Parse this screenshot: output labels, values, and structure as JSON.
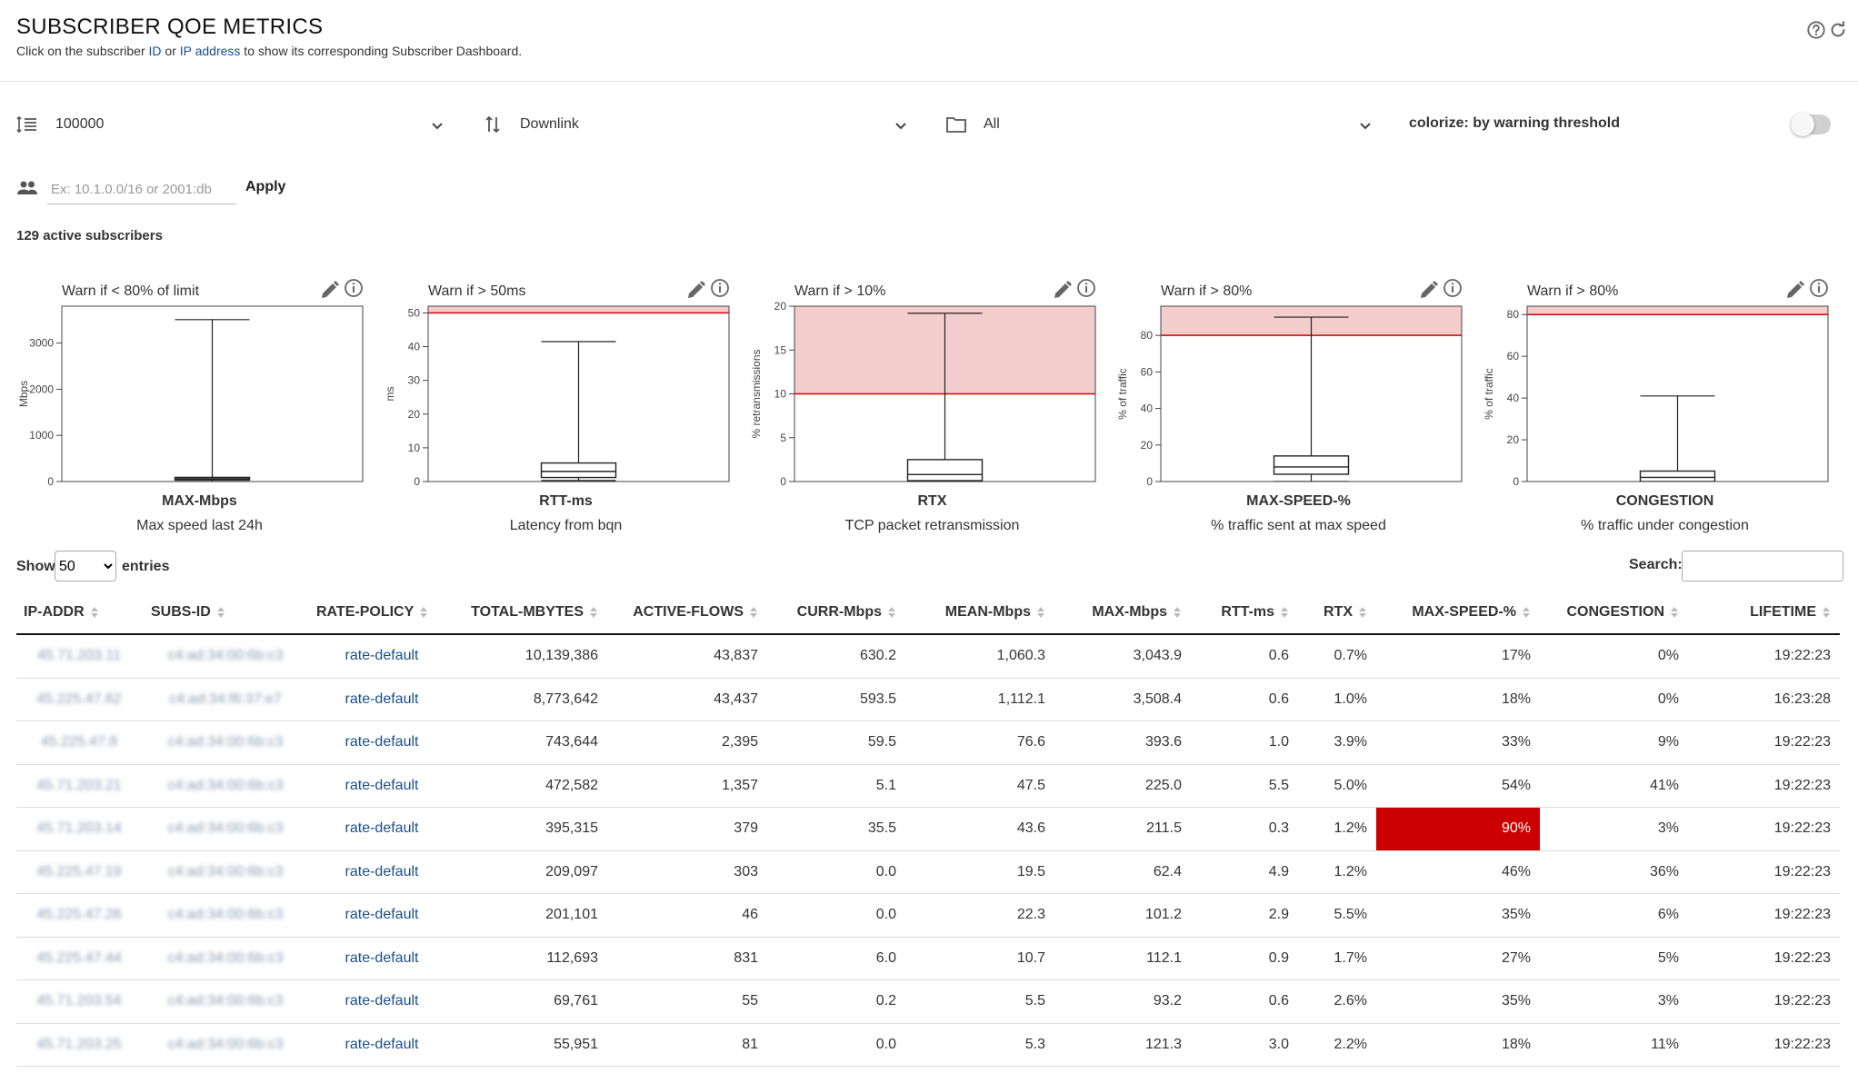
{
  "header": {
    "title": "SUBSCRIBER QOE METRICS",
    "subtitle_prefix": "Click on the subscriber ",
    "subtitle_link1": "ID",
    "subtitle_mid": " or ",
    "subtitle_link2": "IP address",
    "subtitle_suffix": " to show its corresponding Subscriber Dashboard."
  },
  "controls": {
    "limit": "100000",
    "direction": "Downlink",
    "folder": "All",
    "colorize_label": "colorize: by warning threshold",
    "colorize_on": false,
    "ip_filter_placeholder": "Ex: 10.1.0.0/16 or 2001:db",
    "apply_label": "Apply"
  },
  "summary": {
    "active_subscribers": "129 active subscribers"
  },
  "chart_data": [
    {
      "type": "box",
      "warn_text": "Warn if < 80% of limit",
      "name": "MAX-Mbps",
      "description": "Max speed last 24h",
      "ylabel": "Mbps",
      "ylim": [
        0,
        3800
      ],
      "yticks": [
        0,
        1000,
        2000,
        3000
      ],
      "threshold": null,
      "box": {
        "min": 0,
        "q1": 35,
        "median": 60,
        "q3": 90,
        "max": 3508
      }
    },
    {
      "type": "box",
      "warn_text": "Warn if > 50ms",
      "name": "RTT-ms",
      "description": "Latency from bqn",
      "ylabel": "ms",
      "ylim": [
        0,
        52
      ],
      "yticks": [
        0,
        10,
        20,
        30,
        40,
        50
      ],
      "threshold": 50,
      "box": {
        "min": 0.3,
        "q1": 1.2,
        "median": 3.0,
        "q3": 5.5,
        "max": 41.5
      }
    },
    {
      "type": "box",
      "warn_text": "Warn if > 10%",
      "name": "RTX",
      "description": "TCP packet retransmission",
      "ylabel": "% retransmissions",
      "ylim": [
        0,
        20
      ],
      "yticks": [
        0,
        5,
        10,
        15,
        20
      ],
      "threshold": 10,
      "box": {
        "min": 0,
        "q1": 0.1,
        "median": 0.8,
        "q3": 2.5,
        "max": 19.2
      }
    },
    {
      "type": "box",
      "warn_text": "Warn if > 80%",
      "name": "MAX-SPEED-%",
      "description": "% traffic sent at max speed",
      "ylabel": "% of traffic",
      "ylim": [
        0,
        96
      ],
      "yticks": [
        0,
        20,
        40,
        60,
        80
      ],
      "threshold": 80,
      "box": {
        "min": 0,
        "q1": 4,
        "median": 8,
        "q3": 14,
        "max": 90
      }
    },
    {
      "type": "box",
      "warn_text": "Warn if > 80%",
      "name": "CONGESTION",
      "description": "% traffic under congestion",
      "ylabel": "% of traffic",
      "ylim": [
        0,
        84
      ],
      "yticks": [
        0,
        20,
        40,
        60,
        80
      ],
      "threshold": 80,
      "box": {
        "min": 0,
        "q1": 0,
        "median": 2,
        "q3": 5,
        "max": 41
      }
    }
  ],
  "table": {
    "show_label": "Show",
    "entries_value": "50",
    "entries_label": "entries",
    "search_label": "Search:",
    "columns": [
      "IP-ADDR",
      "SUBS-ID",
      "RATE-POLICY",
      "TOTAL-MBYTES",
      "ACTIVE-FLOWS",
      "CURR-Mbps",
      "MEAN-Mbps",
      "MAX-Mbps",
      "RTT-ms",
      "RTX",
      "MAX-SPEED-%",
      "CONGESTION",
      "LIFETIME"
    ],
    "rows": [
      {
        "ip": "45.71.203.11",
        "subs": "c4:ad:34:00:6b:c3",
        "policy": "rate-default",
        "total": "10,139,386",
        "flows": "43,837",
        "curr": "630.2",
        "mean": "1,060.3",
        "max": "3,043.9",
        "rtt": "0.6",
        "rtx": "0.7%",
        "maxspeed": "17%",
        "warn": false,
        "cong": "0%",
        "life": "19:22:23"
      },
      {
        "ip": "45.225.47.62",
        "subs": "c4:ad:34:f6:37:e7",
        "policy": "rate-default",
        "total": "8,773,642",
        "flows": "43,437",
        "curr": "593.5",
        "mean": "1,112.1",
        "max": "3,508.4",
        "rtt": "0.6",
        "rtx": "1.0%",
        "maxspeed": "18%",
        "warn": false,
        "cong": "0%",
        "life": "16:23:28"
      },
      {
        "ip": "45.225.47.8",
        "subs": "c4:ad:34:00:6b:c3",
        "policy": "rate-default",
        "total": "743,644",
        "flows": "2,395",
        "curr": "59.5",
        "mean": "76.6",
        "max": "393.6",
        "rtt": "1.0",
        "rtx": "3.9%",
        "maxspeed": "33%",
        "warn": false,
        "cong": "9%",
        "life": "19:22:23"
      },
      {
        "ip": "45.71.203.21",
        "subs": "c4:ad:34:00:6b:c3",
        "policy": "rate-default",
        "total": "472,582",
        "flows": "1,357",
        "curr": "5.1",
        "mean": "47.5",
        "max": "225.0",
        "rtt": "5.5",
        "rtx": "5.0%",
        "maxspeed": "54%",
        "warn": false,
        "cong": "41%",
        "life": "19:22:23"
      },
      {
        "ip": "45.71.203.14",
        "subs": "c4:ad:34:00:6b:c3",
        "policy": "rate-default",
        "total": "395,315",
        "flows": "379",
        "curr": "35.5",
        "mean": "43.6",
        "max": "211.5",
        "rtt": "0.3",
        "rtx": "1.2%",
        "maxspeed": "90%",
        "warn": true,
        "cong": "3%",
        "life": "19:22:23"
      },
      {
        "ip": "45.225.47.19",
        "subs": "c4:ad:34:00:6b:c3",
        "policy": "rate-default",
        "total": "209,097",
        "flows": "303",
        "curr": "0.0",
        "mean": "19.5",
        "max": "62.4",
        "rtt": "4.9",
        "rtx": "1.2%",
        "maxspeed": "46%",
        "warn": false,
        "cong": "36%",
        "life": "19:22:23"
      },
      {
        "ip": "45.225.47.26",
        "subs": "c4:ad:34:00:6b:c3",
        "policy": "rate-default",
        "total": "201,101",
        "flows": "46",
        "curr": "0.0",
        "mean": "22.3",
        "max": "101.2",
        "rtt": "2.9",
        "rtx": "5.5%",
        "maxspeed": "35%",
        "warn": false,
        "cong": "6%",
        "life": "19:22:23"
      },
      {
        "ip": "45.225.47.44",
        "subs": "c4:ad:34:00:6b:c3",
        "policy": "rate-default",
        "total": "112,693",
        "flows": "831",
        "curr": "6.0",
        "mean": "10.7",
        "max": "112.1",
        "rtt": "0.9",
        "rtx": "1.7%",
        "maxspeed": "27%",
        "warn": false,
        "cong": "5%",
        "life": "19:22:23"
      },
      {
        "ip": "45.71.203.54",
        "subs": "c4:ad:34:00:6b:c3",
        "policy": "rate-default",
        "total": "69,761",
        "flows": "55",
        "curr": "0.2",
        "mean": "5.5",
        "max": "93.2",
        "rtt": "0.6",
        "rtx": "2.6%",
        "maxspeed": "35%",
        "warn": false,
        "cong": "3%",
        "life": "19:22:23"
      },
      {
        "ip": "45.71.203.25",
        "subs": "c4:ad:34:00:6b:c3",
        "policy": "rate-default",
        "total": "55,951",
        "flows": "81",
        "curr": "0.0",
        "mean": "5.3",
        "max": "121.3",
        "rtt": "3.0",
        "rtx": "2.2%",
        "maxspeed": "18%",
        "warn": false,
        "cong": "11%",
        "life": "19:22:23"
      }
    ]
  },
  "colors": {
    "accent_link": "#1a4f8a",
    "warn_fill": "#cc0000",
    "threshold_line": "#d40000",
    "threshold_zone": "#f3cccc"
  }
}
